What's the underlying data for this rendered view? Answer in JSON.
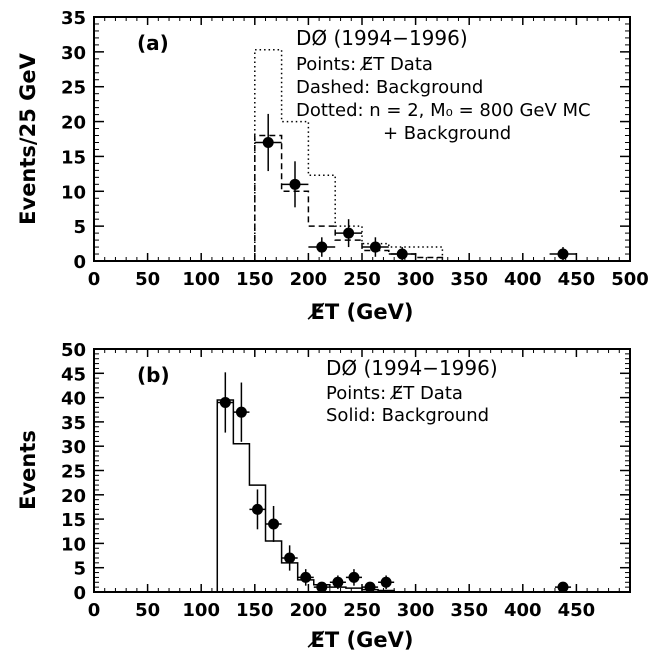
{
  "chart_data": [
    {
      "type": "histogram",
      "panel_label": "(a)",
      "xlabel": "E̸T (GeV)",
      "ylabel": "Events/25 GeV",
      "xlim": [
        0,
        500
      ],
      "ylim": [
        0,
        35
      ],
      "x_ticks": [
        0,
        50,
        100,
        150,
        200,
        250,
        300,
        350,
        400,
        450,
        500
      ],
      "y_ticks": [
        0,
        5,
        10,
        15,
        20,
        25,
        30,
        35
      ],
      "legend": {
        "title": "DØ (1994−1996)",
        "lines": [
          "Points: E̸T Data",
          "Dashed: Background",
          "Dotted: n = 2, M₀ = 800 GeV MC",
          "+ Background"
        ]
      },
      "series": [
        {
          "name": "Dashed: Background",
          "style": "dashed",
          "bins": [
            {
              "x0": 150,
              "x1": 175,
              "y": 18
            },
            {
              "x0": 175,
              "x1": 200,
              "y": 10
            },
            {
              "x0": 200,
              "x1": 225,
              "y": 5
            },
            {
              "x0": 225,
              "x1": 250,
              "y": 3
            },
            {
              "x0": 250,
              "x1": 275,
              "y": 1.5
            },
            {
              "x0": 275,
              "x1": 300,
              "y": 1
            },
            {
              "x0": 300,
              "x1": 325,
              "y": 0.5
            }
          ]
        },
        {
          "name": "Dotted: n = 2, M₀ = 800 GeV MC + Background",
          "style": "dotted",
          "bins": [
            {
              "x0": 150,
              "x1": 175,
              "y": 30.3
            },
            {
              "x0": 175,
              "x1": 200,
              "y": 20
            },
            {
              "x0": 200,
              "x1": 225,
              "y": 12.3
            },
            {
              "x0": 225,
              "x1": 250,
              "y": 5
            },
            {
              "x0": 250,
              "x1": 275,
              "y": 2.5
            },
            {
              "x0": 275,
              "x1": 300,
              "y": 2
            },
            {
              "x0": 300,
              "x1": 325,
              "y": 2
            }
          ]
        },
        {
          "name": "Points: E̸T Data",
          "style": "points",
          "points": [
            {
              "x": 162.5,
              "y": 17,
              "xerr": 12.5,
              "yerr": 4.1
            },
            {
              "x": 187.5,
              "y": 11,
              "xerr": 12.5,
              "yerr": 3.3
            },
            {
              "x": 212.5,
              "y": 2,
              "xerr": 12.5,
              "yerr": 1.4
            },
            {
              "x": 237.5,
              "y": 4,
              "xerr": 12.5,
              "yerr": 2
            },
            {
              "x": 262.5,
              "y": 2,
              "xerr": 12.5,
              "yerr": 1.4
            },
            {
              "x": 287.5,
              "y": 1,
              "xerr": 12.5,
              "yerr": 1
            },
            {
              "x": 437.5,
              "y": 1,
              "xerr": 12.5,
              "yerr": 1
            }
          ]
        }
      ]
    },
    {
      "type": "histogram",
      "panel_label": "(b)",
      "xlabel": "E̸T (GeV)",
      "ylabel": "Events",
      "xlim": [
        0,
        500
      ],
      "ylim": [
        0,
        50
      ],
      "x_ticks": [
        0,
        50,
        100,
        150,
        200,
        250,
        300,
        350,
        400,
        450
      ],
      "y_ticks": [
        0,
        5,
        10,
        15,
        20,
        25,
        30,
        35,
        40,
        45,
        50
      ],
      "legend": {
        "title": "DØ (1994−1996)",
        "lines": [
          "Points: E̸T Data",
          "Solid: Background"
        ]
      },
      "series": [
        {
          "name": "Solid: Background",
          "style": "solid",
          "bins": [
            {
              "x0": 115,
              "x1": 130,
              "y": 39.5
            },
            {
              "x0": 130,
              "x1": 145,
              "y": 30.5
            },
            {
              "x0": 145,
              "x1": 160,
              "y": 22
            },
            {
              "x0": 160,
              "x1": 175,
              "y": 10.5
            },
            {
              "x0": 175,
              "x1": 190,
              "y": 6
            },
            {
              "x0": 190,
              "x1": 205,
              "y": 2.5
            },
            {
              "x0": 205,
              "x1": 220,
              "y": 1.5
            },
            {
              "x0": 220,
              "x1": 235,
              "y": 1
            },
            {
              "x0": 235,
              "x1": 250,
              "y": 0.8
            },
            {
              "x0": 250,
              "x1": 265,
              "y": 0.5
            },
            {
              "x0": 265,
              "x1": 280,
              "y": 0.3
            }
          ]
        },
        {
          "name": "Points: E̸T Data",
          "style": "points",
          "points": [
            {
              "x": 122.5,
              "y": 39,
              "xerr": 7.5,
              "yerr": 6.2
            },
            {
              "x": 137.5,
              "y": 37,
              "xerr": 7.5,
              "yerr": 6.1
            },
            {
              "x": 152.5,
              "y": 17,
              "xerr": 7.5,
              "yerr": 4.1
            },
            {
              "x": 167.5,
              "y": 14,
              "xerr": 7.5,
              "yerr": 3.7
            },
            {
              "x": 182.5,
              "y": 7,
              "xerr": 7.5,
              "yerr": 2.6
            },
            {
              "x": 197.5,
              "y": 3,
              "xerr": 7.5,
              "yerr": 1.7
            },
            {
              "x": 212.5,
              "y": 1,
              "xerr": 7.5,
              "yerr": 1
            },
            {
              "x": 227.5,
              "y": 2,
              "xerr": 7.5,
              "yerr": 1.4
            },
            {
              "x": 242.5,
              "y": 3,
              "xerr": 7.5,
              "yerr": 1.7
            },
            {
              "x": 257.5,
              "y": 1,
              "xerr": 7.5,
              "yerr": 1
            },
            {
              "x": 272.5,
              "y": 2,
              "xerr": 7.5,
              "yerr": 1.4
            },
            {
              "x": 437.5,
              "y": 1,
              "xerr": 7.5,
              "yerr": 1
            }
          ]
        }
      ]
    }
  ]
}
